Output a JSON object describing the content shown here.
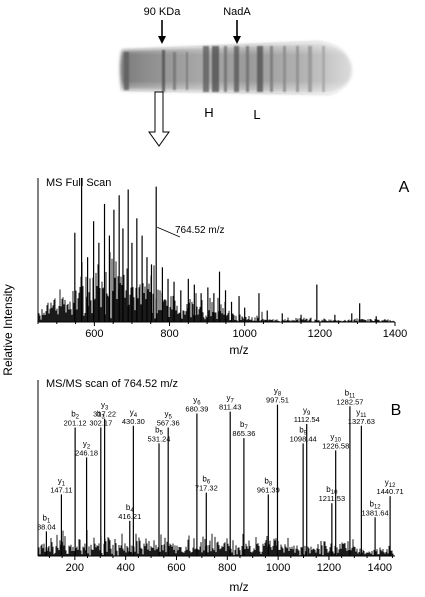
{
  "gel": {
    "label_90kda": "90 KDa",
    "label_nada": "NadA",
    "label_h": "H",
    "label_l": "L"
  },
  "ylabel": "Relative Intensity",
  "chart_data": [
    {
      "panel": "A",
      "type": "bar",
      "title": "MS Full Scan",
      "xlabel": "m/z",
      "ylabel": "Relative Intensity",
      "xlim": [
        450,
        1400
      ],
      "ylim": [
        0,
        100
      ],
      "xticks": [
        600,
        800,
        1000,
        1200,
        1400
      ],
      "grid": false,
      "annotations": [
        {
          "text": "764.52 m/z",
          "x": 764.52
        }
      ],
      "peaks": [
        {
          "x": 548,
          "y": 62
        },
        {
          "x": 566,
          "y": 100
        },
        {
          "x": 582,
          "y": 45
        },
        {
          "x": 598,
          "y": 70
        },
        {
          "x": 612,
          "y": 55
        },
        {
          "x": 627,
          "y": 82
        },
        {
          "x": 640,
          "y": 60
        },
        {
          "x": 652,
          "y": 78
        },
        {
          "x": 666,
          "y": 88
        },
        {
          "x": 676,
          "y": 65
        },
        {
          "x": 690,
          "y": 92
        },
        {
          "x": 700,
          "y": 55
        },
        {
          "x": 713,
          "y": 72
        },
        {
          "x": 727,
          "y": 60
        },
        {
          "x": 740,
          "y": 45
        },
        {
          "x": 752,
          "y": 40
        },
        {
          "x": 764.52,
          "y": 94
        },
        {
          "x": 781,
          "y": 38
        },
        {
          "x": 796,
          "y": 30
        },
        {
          "x": 812,
          "y": 28
        },
        {
          "x": 830,
          "y": 22
        },
        {
          "x": 850,
          "y": 30
        },
        {
          "x": 866,
          "y": 26
        },
        {
          "x": 884,
          "y": 20
        },
        {
          "x": 902,
          "y": 24
        },
        {
          "x": 918,
          "y": 20
        },
        {
          "x": 933,
          "y": 35
        },
        {
          "x": 949,
          "y": 22
        },
        {
          "x": 965,
          "y": 14
        },
        {
          "x": 985,
          "y": 18
        },
        {
          "x": 1000,
          "y": 10
        },
        {
          "x": 1038,
          "y": 20
        },
        {
          "x": 1060,
          "y": 8
        },
        {
          "x": 1100,
          "y": 6
        },
        {
          "x": 1150,
          "y": 5
        },
        {
          "x": 1192,
          "y": 26
        },
        {
          "x": 1240,
          "y": 5
        },
        {
          "x": 1285,
          "y": 6
        },
        {
          "x": 1306,
          "y": 13
        },
        {
          "x": 1350,
          "y": 4
        }
      ]
    },
    {
      "panel": "B",
      "type": "bar",
      "title": "MS/MS scan of 764.52 m/z",
      "xlabel": "m/z",
      "ylabel": "Relative Intensity",
      "xlim": [
        55,
        1460
      ],
      "ylim": [
        0,
        100
      ],
      "xticks": [
        200,
        400,
        600,
        800,
        1000,
        1200,
        1400
      ],
      "grid": false,
      "peaks": [
        {
          "x": 88.04,
          "y": 14,
          "ion": "b",
          "sub": "1",
          "value": "88.04"
        },
        {
          "x": 147.11,
          "y": 35,
          "ion": "y",
          "sub": "1",
          "value": "147.11"
        },
        {
          "x": 201.12,
          "y": 73,
          "ion": "b",
          "sub": "2",
          "value": "201.12"
        },
        {
          "x": 246.18,
          "y": 56,
          "ion": "y",
          "sub": "2",
          "value": "246.18"
        },
        {
          "x": 302.17,
          "y": 73,
          "ion": "b",
          "sub": "3",
          "value": "302.17"
        },
        {
          "x": 317.22,
          "y": 78,
          "ion": "y",
          "sub": "3",
          "value": "317.22"
        },
        {
          "x": 416.21,
          "y": 20,
          "ion": "b",
          "sub": "4",
          "value": "416.21"
        },
        {
          "x": 430.3,
          "y": 74,
          "ion": "y",
          "sub": "4",
          "value": "430.30"
        },
        {
          "x": 531.24,
          "y": 64,
          "ion": "b",
          "sub": "5",
          "value": "531.24"
        },
        {
          "x": 567.36,
          "y": 73,
          "ion": "y",
          "sub": "5",
          "value": "567.36"
        },
        {
          "x": 680.39,
          "y": 81,
          "ion": "y",
          "sub": "6",
          "value": "680.39"
        },
        {
          "x": 717.32,
          "y": 36,
          "ion": "b",
          "sub": "6",
          "value": "717.32"
        },
        {
          "x": 811.43,
          "y": 82,
          "ion": "y",
          "sub": "7",
          "value": "811.43"
        },
        {
          "x": 865.36,
          "y": 67,
          "ion": "b",
          "sub": "7",
          "value": "865.36"
        },
        {
          "x": 961.39,
          "y": 35,
          "ion": "b",
          "sub": "8",
          "value": "961.39"
        },
        {
          "x": 997.51,
          "y": 86,
          "ion": "y",
          "sub": "8",
          "value": "997.51"
        },
        {
          "x": 1098.44,
          "y": 64,
          "ion": "b",
          "sub": "9",
          "value": "1098.44"
        },
        {
          "x": 1112.54,
          "y": 75,
          "ion": "y",
          "sub": "9",
          "value": "1112.54"
        },
        {
          "x": 1211.53,
          "y": 30,
          "ion": "b",
          "sub": "10",
          "value": "1211.53"
        },
        {
          "x": 1226.58,
          "y": 60,
          "ion": "y",
          "sub": "10",
          "value": "1226.58"
        },
        {
          "x": 1282.57,
          "y": 85,
          "ion": "b",
          "sub": "11",
          "value": "1282.57"
        },
        {
          "x": 1327.63,
          "y": 74,
          "ion": "y",
          "sub": "11",
          "value": "1327.63"
        },
        {
          "x": 1381.64,
          "y": 22,
          "ion": "b",
          "sub": "12",
          "value": "1381.64"
        },
        {
          "x": 1440.71,
          "y": 34,
          "ion": "y",
          "sub": "12",
          "value": "1440.71"
        }
      ]
    }
  ]
}
